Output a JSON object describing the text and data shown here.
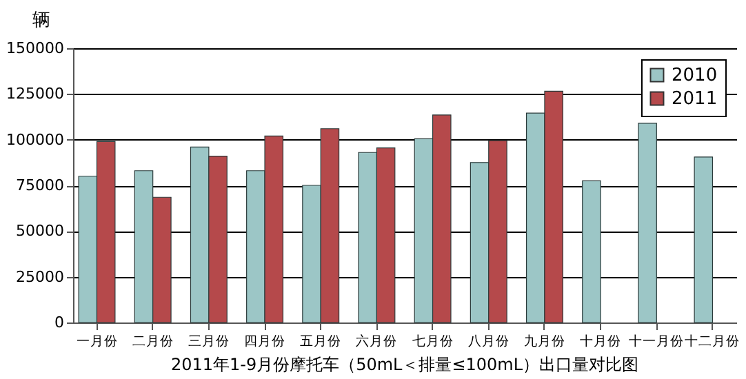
{
  "chart_data": {
    "type": "bar",
    "title": "2011年1-9月份摩托车（50mL＜排量≤100mL）出口量对比图",
    "ylabel": "辆",
    "categories": [
      "一月份",
      "二月份",
      "三月份",
      "四月份",
      "五月份",
      "六月份",
      "七月份",
      "八月份",
      "九月份",
      "十月份",
      "十一月份",
      "十二月份"
    ],
    "series": [
      {
        "name": "2010",
        "color": "#9cc6c6",
        "values": [
          80000,
          83000,
          96000,
          83000,
          75000,
          93000,
          100500,
          87500,
          114500,
          77500,
          109000,
          90500
        ]
      },
      {
        "name": "2011",
        "color": "#b5494b",
        "values": [
          99000,
          68500,
          91000,
          102000,
          106000,
          95500,
          113500,
          99500,
          126500,
          null,
          null,
          null
        ]
      }
    ],
    "ylim": [
      0,
      150000
    ],
    "yticks": [
      0,
      25000,
      50000,
      75000,
      100000,
      125000,
      150000
    ],
    "grid": "y",
    "legend": "top right"
  }
}
